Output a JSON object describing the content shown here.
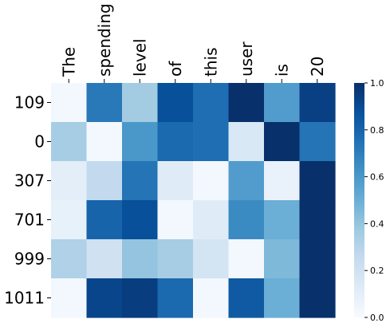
{
  "chart_data": {
    "type": "heatmap",
    "x_tokens": [
      "The",
      "spending",
      "level",
      "of",
      "this",
      "user",
      "is",
      "20"
    ],
    "y_tokens": [
      "109",
      "0",
      "307",
      "701",
      "999",
      "1011"
    ],
    "values": [
      [
        0.02,
        0.72,
        0.36,
        0.88,
        0.76,
        1.0,
        0.58,
        0.94
      ],
      [
        0.35,
        0.02,
        0.6,
        0.78,
        0.76,
        0.15,
        1.0,
        0.74
      ],
      [
        0.1,
        0.26,
        0.74,
        0.12,
        0.02,
        0.58,
        0.07,
        1.0
      ],
      [
        0.08,
        0.8,
        0.88,
        0.02,
        0.12,
        0.65,
        0.5,
        1.0
      ],
      [
        0.32,
        0.2,
        0.4,
        0.35,
        0.18,
        0.02,
        0.45,
        1.0
      ],
      [
        0.02,
        0.92,
        0.95,
        0.78,
        0.02,
        0.84,
        0.5,
        1.0
      ]
    ],
    "colormap": "Blues",
    "vmin": 0.0,
    "vmax": 1.0,
    "colorbar_ticks": [
      "0.0",
      "0.2",
      "0.4",
      "0.6",
      "0.8",
      "1.0"
    ],
    "colorbar_tick_values": [
      0.0,
      0.2,
      0.4,
      0.6,
      0.8,
      1.0
    ],
    "title": "",
    "xlabel": "",
    "ylabel": ""
  }
}
